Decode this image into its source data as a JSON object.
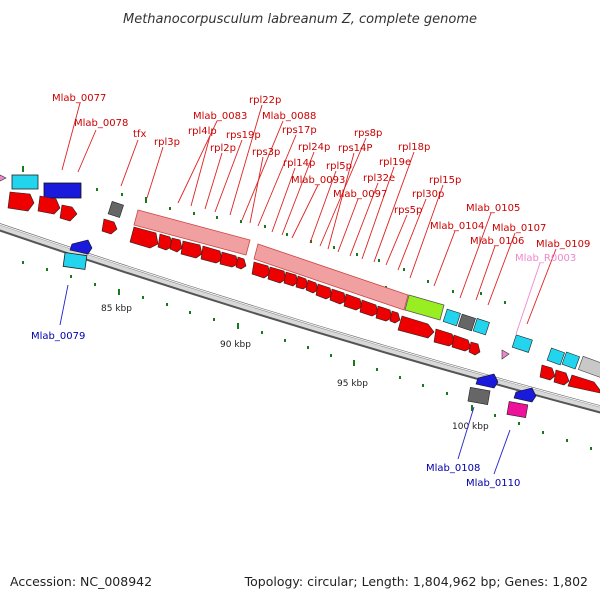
{
  "title": "Methanocorpusculum labreanum Z, complete genome",
  "footer": {
    "accession": "Accession: NC_008942",
    "stats": "Topology: circular; Length: 1,804,962 bp; Genes: 1,802"
  },
  "colors": {
    "forward_cds": "#ee0000",
    "reverse_cds": "#1a1add",
    "rrna_block": "#f0a0a0",
    "highlight_block": "#99ee22",
    "trna": "#22d4ee",
    "pseudo": "#666666",
    "misc_magenta": "#ee1199",
    "label_forward": "#cc0000",
    "label_reverse": "#0000aa",
    "label_rna": "#ee88cc",
    "ticks": "#1a7a1a"
  },
  "scale_labels": [
    "85 kbp",
    "90 kbp",
    "95 kbp",
    "100 kbp"
  ],
  "labels_top": [
    {
      "text": "Mlab_0077",
      "color": "red"
    },
    {
      "text": "Mlab_0078",
      "color": "red"
    },
    {
      "text": "tfx",
      "color": "red"
    },
    {
      "text": "rpl3p",
      "color": "red"
    },
    {
      "text": "Mlab_0083",
      "color": "red"
    },
    {
      "text": "rpl4lp",
      "color": "red"
    },
    {
      "text": "rpl2p",
      "color": "red"
    },
    {
      "text": "rps19p",
      "color": "red"
    },
    {
      "text": "rpl22p",
      "color": "red"
    },
    {
      "text": "Mlab_0088",
      "color": "red"
    },
    {
      "text": "rps3p",
      "color": "red"
    },
    {
      "text": "rps17p",
      "color": "red"
    },
    {
      "text": "rpl14p",
      "color": "red"
    },
    {
      "text": "rpl24p",
      "color": "red"
    },
    {
      "text": "Mlab_0093",
      "color": "red"
    },
    {
      "text": "rpl5p",
      "color": "red"
    },
    {
      "text": "rps8p",
      "color": "red"
    },
    {
      "text": "rps14P",
      "color": "red"
    },
    {
      "text": "Mlab_0097",
      "color": "red"
    },
    {
      "text": "rpl32e",
      "color": "red"
    },
    {
      "text": "rpl19e",
      "color": "red"
    },
    {
      "text": "rpl18p",
      "color": "red"
    },
    {
      "text": "rps5p",
      "color": "red"
    },
    {
      "text": "rpl30p",
      "color": "red"
    },
    {
      "text": "rpl15p",
      "color": "red"
    },
    {
      "text": "Mlab_0104",
      "color": "red"
    },
    {
      "text": "Mlab_0105",
      "color": "red"
    },
    {
      "text": "Mlab_0106",
      "color": "red"
    },
    {
      "text": "Mlab_0107",
      "color": "red"
    },
    {
      "text": "Mlab_0109",
      "color": "red"
    },
    {
      "text": "Mlab_R0003",
      "color": "pink"
    }
  ],
  "labels_bottom": [
    {
      "text": "Mlab_0079",
      "color": "blue"
    },
    {
      "text": "Mlab_0108",
      "color": "blue"
    },
    {
      "text": "Mlab_0110",
      "color": "blue"
    }
  ]
}
